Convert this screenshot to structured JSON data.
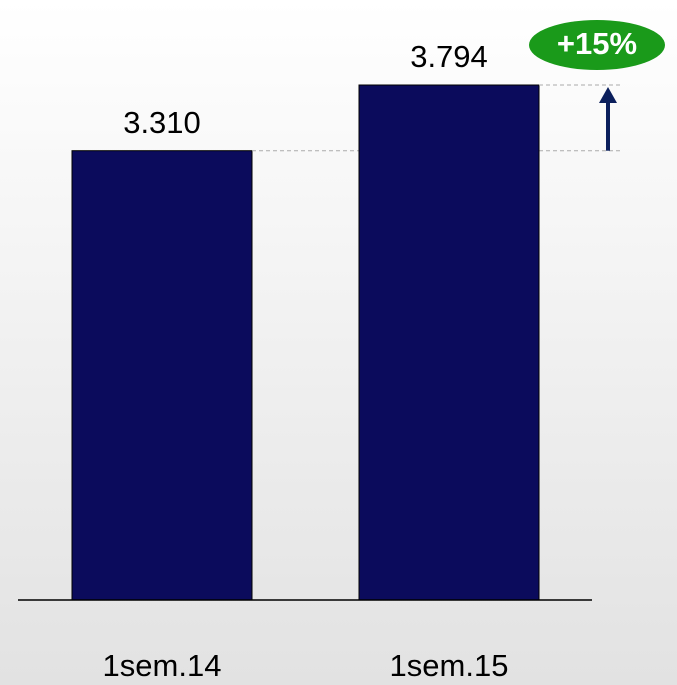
{
  "chart_data": {
    "type": "bar",
    "categories": [
      "1sem.14",
      "1sem.15"
    ],
    "values": [
      3310,
      3794
    ],
    "value_labels": [
      "3.310",
      "3.794"
    ],
    "color": "#0b0b5c",
    "annotation": "+15%",
    "annotation_color": "#1a9a1a"
  }
}
